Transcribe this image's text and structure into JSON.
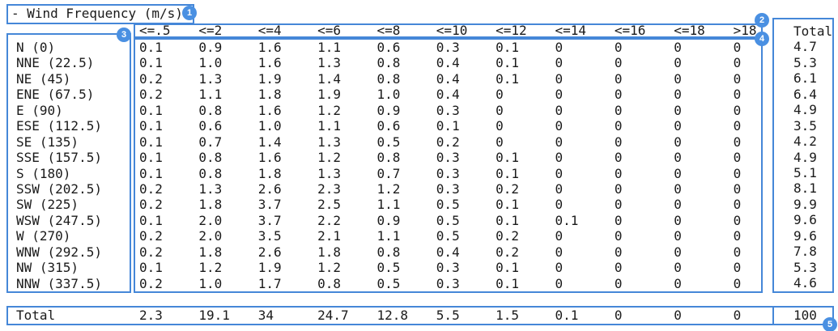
{
  "title": "- Wind Frequency (m/s)",
  "annotations": {
    "marks": [
      "1",
      "2",
      "3",
      "4",
      "5"
    ]
  },
  "colors": {
    "box_border": "#4587d8",
    "badge_fill": "#4a90e2",
    "badge_text": "#ffffff",
    "text": "#1a1a1a",
    "background": "#ffffff"
  },
  "chart_data": {
    "type": "table",
    "title": "Wind Frequency (m/s)",
    "columns": [
      "<=.5",
      "<=2",
      "<=4",
      "<=6",
      "<=8",
      "<=10",
      "<=12",
      "<=14",
      "<=16",
      "<=18",
      ">18"
    ],
    "total_column_label": "Total",
    "rows": [
      {
        "label": "N (0)",
        "values": [
          "0.1",
          "0.9",
          "1.6",
          "1.1",
          "0.6",
          "0.3",
          "0.1",
          "0",
          "0",
          "0",
          "0"
        ],
        "total": "4.7"
      },
      {
        "label": "NNE (22.5)",
        "values": [
          "0.1",
          "1.0",
          "1.6",
          "1.3",
          "0.8",
          "0.4",
          "0.1",
          "0",
          "0",
          "0",
          "0"
        ],
        "total": "5.3"
      },
      {
        "label": "NE (45)",
        "values": [
          "0.2",
          "1.3",
          "1.9",
          "1.4",
          "0.8",
          "0.4",
          "0.1",
          "0",
          "0",
          "0",
          "0"
        ],
        "total": "6.1"
      },
      {
        "label": "ENE (67.5)",
        "values": [
          "0.2",
          "1.1",
          "1.8",
          "1.9",
          "1.0",
          "0.4",
          "0",
          "0",
          "0",
          "0",
          "0"
        ],
        "total": "6.4"
      },
      {
        "label": "E (90)",
        "values": [
          "0.1",
          "0.8",
          "1.6",
          "1.2",
          "0.9",
          "0.3",
          "0",
          "0",
          "0",
          "0",
          "0"
        ],
        "total": "4.9"
      },
      {
        "label": "ESE (112.5)",
        "values": [
          "0.1",
          "0.6",
          "1.0",
          "1.1",
          "0.6",
          "0.1",
          "0",
          "0",
          "0",
          "0",
          "0"
        ],
        "total": "3.5"
      },
      {
        "label": "SE (135)",
        "values": [
          "0.1",
          "0.7",
          "1.4",
          "1.3",
          "0.5",
          "0.2",
          "0",
          "0",
          "0",
          "0",
          "0"
        ],
        "total": "4.2"
      },
      {
        "label": "SSE (157.5)",
        "values": [
          "0.1",
          "0.8",
          "1.6",
          "1.2",
          "0.8",
          "0.3",
          "0.1",
          "0",
          "0",
          "0",
          "0"
        ],
        "total": "4.9"
      },
      {
        "label": "S (180)",
        "values": [
          "0.1",
          "0.8",
          "1.8",
          "1.3",
          "0.7",
          "0.3",
          "0.1",
          "0",
          "0",
          "0",
          "0"
        ],
        "total": "5.1"
      },
      {
        "label": "SSW (202.5)",
        "values": [
          "0.2",
          "1.3",
          "2.6",
          "2.3",
          "1.2",
          "0.3",
          "0.2",
          "0",
          "0",
          "0",
          "0"
        ],
        "total": "8.1"
      },
      {
        "label": "SW (225)",
        "values": [
          "0.2",
          "1.8",
          "3.7",
          "2.5",
          "1.1",
          "0.5",
          "0.1",
          "0",
          "0",
          "0",
          "0"
        ],
        "total": "9.9"
      },
      {
        "label": "WSW (247.5)",
        "values": [
          "0.1",
          "2.0",
          "3.7",
          "2.2",
          "0.9",
          "0.5",
          "0.1",
          "0.1",
          "0",
          "0",
          "0"
        ],
        "total": "9.6"
      },
      {
        "label": "W (270)",
        "values": [
          "0.2",
          "2.0",
          "3.5",
          "2.1",
          "1.1",
          "0.5",
          "0.2",
          "0",
          "0",
          "0",
          "0"
        ],
        "total": "9.6"
      },
      {
        "label": "WNW (292.5)",
        "values": [
          "0.2",
          "1.8",
          "2.6",
          "1.8",
          "0.8",
          "0.4",
          "0.2",
          "0",
          "0",
          "0",
          "0"
        ],
        "total": "7.8"
      },
      {
        "label": "NW (315)",
        "values": [
          "0.1",
          "1.2",
          "1.9",
          "1.2",
          "0.5",
          "0.3",
          "0.1",
          "0",
          "0",
          "0",
          "0"
        ],
        "total": "5.3"
      },
      {
        "label": "NNW (337.5)",
        "values": [
          "0.2",
          "1.0",
          "1.7",
          "0.8",
          "0.5",
          "0.3",
          "0.1",
          "0",
          "0",
          "0",
          "0"
        ],
        "total": "4.6"
      }
    ],
    "totals_row": {
      "label": "Total",
      "values": [
        "2.3",
        "19.1",
        "34",
        "24.7",
        "12.8",
        "5.5",
        "1.5",
        "0.1",
        "0",
        "0",
        "0"
      ],
      "total": "100"
    }
  }
}
